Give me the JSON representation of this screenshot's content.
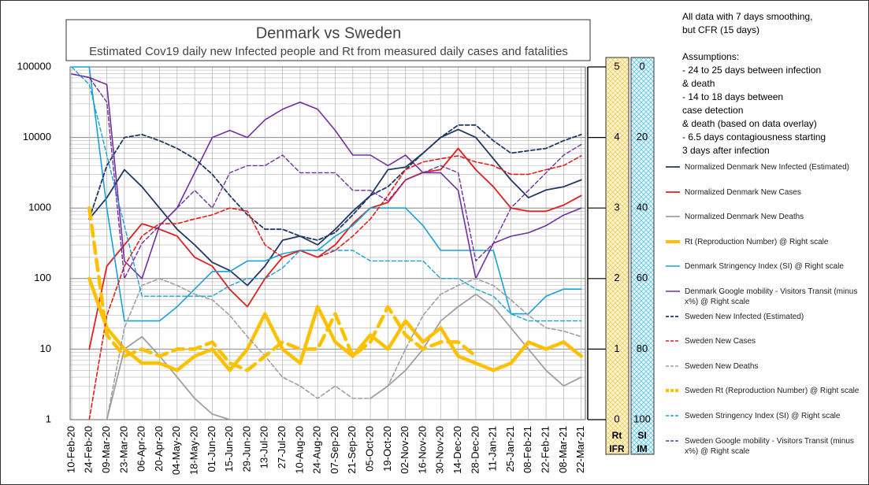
{
  "chart_data": {
    "type": "line",
    "title": "Denmark vs Sweden",
    "subtitle": "Estimated Cov19 daily new Infected people and Rt from measured daily cases and fatalities",
    "notes": [
      [
        "All data with 7 days smoothing,",
        "but CFR (15 days)"
      ],
      [
        "Assumptions:",
        "- 24 to 25 days between infection",
        "& death",
        "- 14 to 18 days between",
        "case detection",
        "& death (based on data overlay)",
        "- 6.5 days contagiousness starting",
        "3 days after infection"
      ]
    ],
    "x": [
      "10-Feb-20",
      "24-Feb-20",
      "09-Mar-20",
      "23-Mar-20",
      "06-Apr-20",
      "20-Apr-20",
      "04-May-20",
      "18-May-20",
      "01-Jun-20",
      "15-Jun-20",
      "29-Jun-20",
      "13-Jul-20",
      "27-Jul-20",
      "10-Aug-20",
      "24-Aug-20",
      "07-Sep-20",
      "21-Sep-20",
      "05-Oct-20",
      "19-Oct-20",
      "02-Nov-20",
      "16-Nov-20",
      "30-Nov-20",
      "14-Dec-20",
      "28-Dec-20",
      "11-Jan-21",
      "25-Jan-21",
      "08-Feb-21",
      "22-Feb-21",
      "08-Mar-21",
      "22-Mar-21"
    ],
    "log_y": true,
    "grid": true,
    "minor_grid": true,
    "ylim": [
      1,
      100000
    ],
    "yticks": [
      1,
      10,
      100,
      1000,
      10000,
      100000
    ],
    "y2lim": [
      0,
      5
    ],
    "y2ticks": [
      0,
      1,
      2,
      3,
      4,
      5
    ],
    "y2label": [
      "Rt",
      "IFR"
    ],
    "y3lim": [
      100,
      0
    ],
    "y3ticks": [
      100,
      80,
      60,
      40,
      20,
      0
    ],
    "y3label": [
      "SI",
      "IM"
    ],
    "series": [
      {
        "name": "Normalized Denmark New Infected (Estimated)",
        "color": "#1f3864",
        "width": 1.8,
        "dash": false,
        "axis": "y",
        "values": [
          null,
          700,
          1400,
          3500,
          2000,
          1000,
          500,
          300,
          170,
          130,
          80,
          150,
          350,
          400,
          300,
          500,
          900,
          1500,
          3500,
          3800,
          6000,
          10000,
          13000,
          10000,
          5000,
          2500,
          1400,
          1800,
          2000,
          2500
        ]
      },
      {
        "name": "Normalized Denmark New Cases",
        "color": "#e02020",
        "width": 1.8,
        "dash": false,
        "axis": "y",
        "values": [
          null,
          10,
          150,
          300,
          600,
          500,
          400,
          200,
          150,
          70,
          40,
          100,
          200,
          250,
          200,
          300,
          600,
          1000,
          1200,
          2500,
          3200,
          3500,
          7000,
          3500,
          2000,
          1000,
          900,
          900,
          1100,
          1500
        ]
      },
      {
        "name": "Normalized Denmark New Deaths",
        "color": "#a0a0a0",
        "width": 1.8,
        "dash": false,
        "axis": "y",
        "values": [
          null,
          null,
          1,
          10,
          15,
          8,
          4,
          2,
          1.2,
          1,
          null,
          null,
          null,
          null,
          null,
          null,
          null,
          2,
          3,
          5,
          10,
          25,
          40,
          60,
          40,
          20,
          10,
          5,
          3,
          4
        ]
      },
      {
        "name": "Rt (Reproduction Number) @ Right scale",
        "color": "#ffc000",
        "width": 4.5,
        "dash": false,
        "axis": "y2",
        "values": [
          null,
          2.0,
          1.3,
          1.0,
          0.8,
          0.8,
          0.7,
          0.9,
          1.0,
          0.7,
          1.0,
          1.5,
          1.0,
          0.8,
          1.6,
          1.1,
          0.9,
          1.2,
          1.0,
          1.4,
          1.1,
          1.3,
          0.9,
          0.8,
          0.7,
          0.8,
          1.1,
          1.0,
          1.1,
          0.9
        ]
      },
      {
        "name": "Denmark Stringency  Index (SI) @ Right scale",
        "color": "#1ba1d8",
        "width": 1.6,
        "dash": false,
        "axis": "y3",
        "values": [
          0,
          0,
          40,
          72,
          72,
          72,
          68,
          63,
          58,
          58,
          55,
          55,
          53,
          52,
          52,
          48,
          45,
          40,
          40,
          40,
          45,
          52,
          52,
          52,
          52,
          70,
          70,
          65,
          63,
          63
        ]
      },
      {
        "name": "Denmark Google mobility - Visitors Transit (minus x%) @ Right scale",
        "color": "#7030a0",
        "width": 1.6,
        "dash": false,
        "axis": "y3",
        "values": [
          2,
          3,
          5,
          55,
          60,
          45,
          40,
          30,
          20,
          18,
          20,
          15,
          12,
          10,
          12,
          18,
          25,
          25,
          28,
          25,
          30,
          30,
          35,
          60,
          50,
          48,
          47,
          45,
          42,
          40
        ]
      },
      {
        "name": "Sweden New Infected (Estimated)",
        "color": "#1f3864",
        "width": 1.8,
        "dash": true,
        "axis": "y",
        "values": [
          null,
          700,
          4000,
          10000,
          11000,
          9000,
          7000,
          5000,
          3000,
          1500,
          800,
          500,
          500,
          400,
          350,
          450,
          800,
          1500,
          2000,
          3500,
          6000,
          10000,
          15000,
          15000,
          9000,
          6000,
          6500,
          7000,
          9000,
          11000
        ]
      },
      {
        "name": "Sweden New Cases",
        "color": "#e02020",
        "width": 1.6,
        "dash": true,
        "axis": "y",
        "values": [
          null,
          1,
          30,
          150,
          400,
          600,
          600,
          700,
          800,
          1000,
          900,
          300,
          200,
          250,
          200,
          250,
          400,
          700,
          1500,
          3500,
          4500,
          5000,
          5500,
          4500,
          4000,
          3000,
          3000,
          3500,
          4000,
          5500
        ]
      },
      {
        "name": "Sweden New Deaths",
        "color": "#a0a0a0",
        "width": 1.6,
        "dash": true,
        "axis": "y",
        "values": [
          null,
          null,
          1,
          20,
          80,
          100,
          80,
          60,
          50,
          30,
          15,
          8,
          4,
          3,
          2,
          3,
          2,
          2,
          3,
          10,
          30,
          60,
          80,
          100,
          80,
          50,
          30,
          20,
          18,
          15
        ]
      },
      {
        "name": "Sweden Rt (Reproduction Number) @ Right scale",
        "color": "#ffc000",
        "width": 4.5,
        "dash": true,
        "axis": "y2",
        "values": [
          null,
          3.0,
          1.2,
          0.9,
          1.0,
          0.9,
          1.0,
          1.0,
          1.1,
          0.8,
          0.7,
          0.9,
          1.1,
          1.0,
          1.0,
          1.5,
          0.9,
          1.1,
          1.6,
          1.2,
          1.0,
          1.1,
          1.1,
          0.9,
          null,
          null,
          null,
          null,
          null,
          null
        ]
      },
      {
        "name": "Sweden Stringency  Index (SI) @ Right scale",
        "color": "#1ba1d8",
        "width": 1.4,
        "dash": true,
        "axis": "y3",
        "values": [
          0,
          5,
          25,
          45,
          65,
          65,
          65,
          65,
          65,
          62,
          60,
          60,
          57,
          52,
          52,
          52,
          52,
          55,
          55,
          55,
          55,
          60,
          60,
          63,
          65,
          70,
          72,
          72,
          72,
          72
        ]
      },
      {
        "name": "Sweden Google mobility - Visitors Transit (minus x%) @ Right scale",
        "color": "#7030a0",
        "width": 1.4,
        "dash": true,
        "axis": "y3",
        "values": [
          2,
          3,
          10,
          60,
          50,
          45,
          40,
          35,
          40,
          30,
          28,
          28,
          25,
          30,
          30,
          30,
          35,
          35,
          38,
          32,
          30,
          28,
          30,
          55,
          50,
          40,
          35,
          30,
          25,
          22
        ]
      }
    ]
  }
}
